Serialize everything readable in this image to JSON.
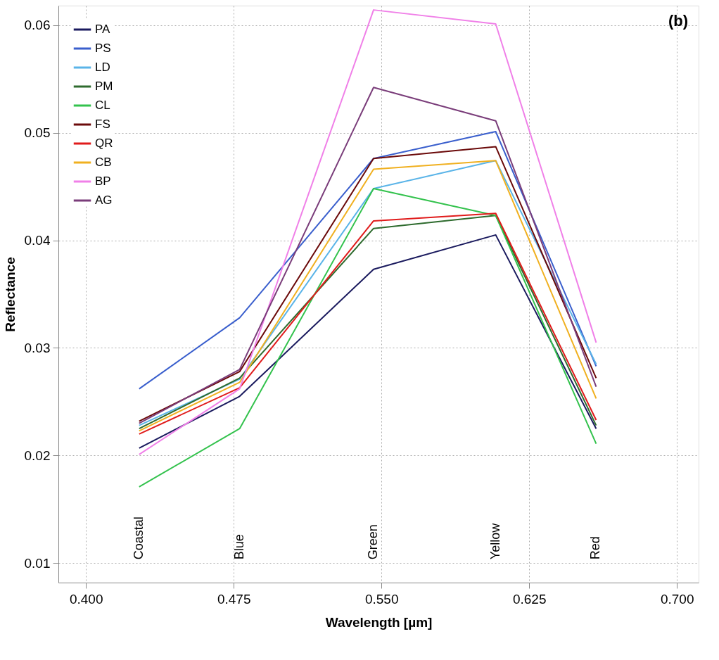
{
  "chart_data": {
    "type": "line",
    "xlabel": "Wavelength [µm]",
    "ylabel": "Reflectance",
    "x": [
      0.427,
      0.478,
      0.546,
      0.608,
      0.659
    ],
    "series": [
      {
        "name": "PA",
        "color": "#1a1a5e",
        "values": [
          0.0207,
          0.0255,
          0.0373,
          0.0405,
          0.0225
        ]
      },
      {
        "name": "PS",
        "color": "#3a5fcd",
        "values": [
          0.0262,
          0.0328,
          0.0476,
          0.0501,
          0.0283
        ]
      },
      {
        "name": "LD",
        "color": "#5ab4e8",
        "values": [
          0.0228,
          0.0271,
          0.0448,
          0.0474,
          0.0285
        ]
      },
      {
        "name": "PM",
        "color": "#2e6b2e",
        "values": [
          0.0225,
          0.0272,
          0.0411,
          0.0423,
          0.0228
        ]
      },
      {
        "name": "CL",
        "color": "#33c24d",
        "values": [
          0.0171,
          0.0225,
          0.0448,
          0.0423,
          0.0211
        ]
      },
      {
        "name": "FS",
        "color": "#6b0a0a",
        "values": [
          0.0232,
          0.0278,
          0.0476,
          0.0487,
          0.0272
        ]
      },
      {
        "name": "QR",
        "color": "#e01b1b",
        "values": [
          0.022,
          0.0263,
          0.0418,
          0.0425,
          0.0233
        ]
      },
      {
        "name": "CB",
        "color": "#f0b020",
        "values": [
          0.0223,
          0.0268,
          0.0466,
          0.0474,
          0.0253
        ]
      },
      {
        "name": "BP",
        "color": "#f080e8",
        "values": [
          0.0201,
          0.0262,
          0.0614,
          0.0601,
          0.0305
        ]
      },
      {
        "name": "AG",
        "color": "#7a3d7a",
        "values": [
          0.023,
          0.028,
          0.0542,
          0.0511,
          0.0264
        ]
      }
    ],
    "xlim": [
      0.386,
      0.711
    ],
    "ylim": [
      0.0082,
      0.0618
    ],
    "xticks": [
      {
        "value": 0.4,
        "label": "0.400"
      },
      0.475,
      {
        "value": 0.55,
        "label": "0.550"
      },
      0.625,
      {
        "value": 0.7,
        "label": "0.700"
      }
    ],
    "yticks": [
      0.01,
      0.02,
      0.03,
      0.04,
      0.05,
      0.06
    ],
    "annotations": [
      "Coastal",
      "Blue",
      "Green",
      "Yellow",
      "Red",
      "(b)"
    ],
    "grid": true,
    "legend": "top left",
    "line_style": "solid",
    "marker": "none"
  }
}
